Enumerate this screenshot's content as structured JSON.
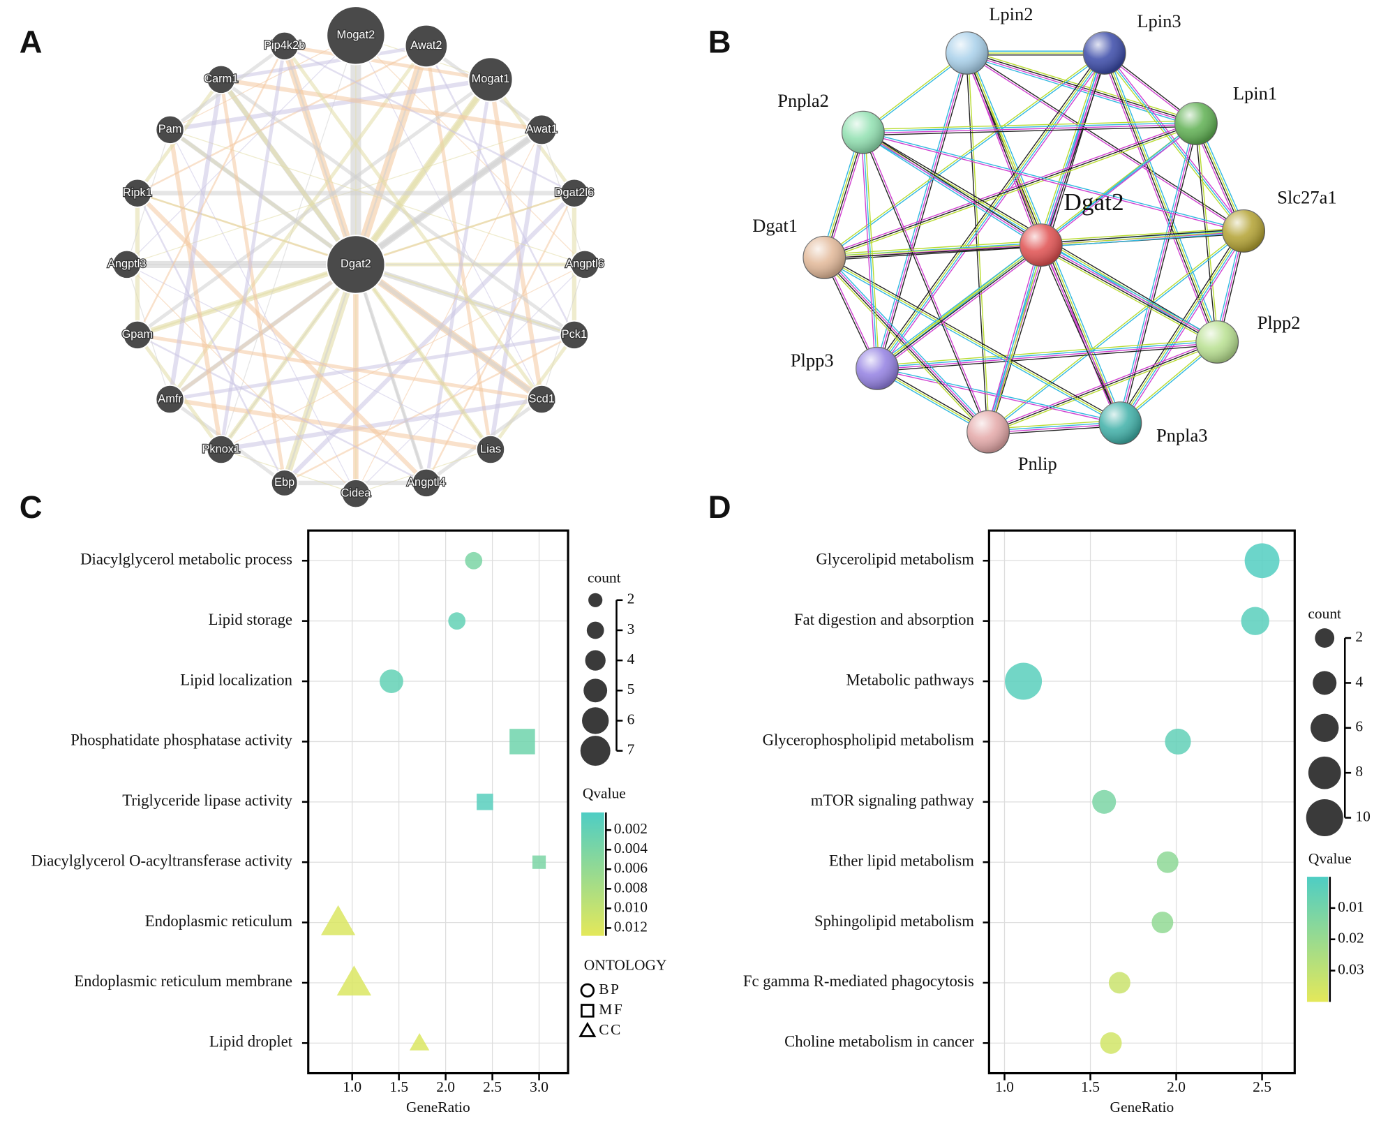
{
  "panel_labels": [
    "A",
    "B",
    "C",
    "D"
  ],
  "network_a": {
    "center": "Dgat2",
    "nodes": [
      "Mogat2",
      "Awat2",
      "Mogat1",
      "Awat1",
      "Dgat2l6",
      "Angptl6",
      "Pck1",
      "Scd1",
      "Lias",
      "Angptl4",
      "Cidea",
      "Ebp",
      "Pknox1",
      "Amfr",
      "Gpam",
      "Angptl3",
      "Ripk1",
      "Pam",
      "Carm1",
      "Pip4k2b"
    ]
  },
  "network_b": {
    "center": "Dgat2",
    "nodes": [
      "Lpin2",
      "Lpin3",
      "Lpin1",
      "Slc27a1",
      "Plpp2",
      "Pnpla3",
      "Pnlip",
      "Plpp3",
      "Dgat1",
      "Pnpla2"
    ]
  },
  "chart_data": [
    {
      "type": "scatter",
      "categories": [
        "Diacylglycerol metabolic process",
        "Lipid storage",
        "Lipid localization",
        "Phosphatidate phosphatase activity",
        "Triglyceride lipase activity",
        "Diacylglycerol O-acyltransferase activity",
        "Endoplasmic reticulum",
        "Endoplasmic reticulum membrane",
        "Lipid droplet"
      ],
      "values": [
        2.3,
        2.12,
        1.42,
        2.82,
        2.42,
        3.0,
        0.85,
        1.02,
        1.72
      ],
      "sizes": [
        3,
        3,
        5,
        6,
        3,
        2,
        7,
        7,
        3
      ],
      "qvalues": [
        0.004,
        0.002,
        0.002,
        0.003,
        0.001,
        0.004,
        0.012,
        0.012,
        0.012
      ],
      "ontology": [
        "BP",
        "BP",
        "BP",
        "MF",
        "MF",
        "MF",
        "CC",
        "CC",
        "CC"
      ],
      "x_label": "GeneRatio",
      "xlim": [
        0.53,
        3.31
      ],
      "xticks": [
        {
          "value": 1,
          "label": "1.0"
        },
        1.5,
        {
          "value": 2,
          "label": "2.0"
        },
        2.5,
        {
          "value": 3,
          "label": "3.0"
        }
      ],
      "grid": true,
      "size_title": "count",
      "size_ticks": [
        2,
        3,
        4,
        5,
        6,
        7
      ],
      "color_title": "Qvalue",
      "color_lim": [
        0.0002,
        0.0128
      ],
      "color_ticks": [
        0.002,
        0.004,
        0.006,
        0.008,
        {
          "value": 0.01,
          "label": "0.010"
        },
        0.012
      ],
      "color_low": "#4ecdc4",
      "color_high": "#e4e85a",
      "shape_title": "ONTOLOGY",
      "shape_legend": [
        "BP",
        "MF",
        "CC"
      ]
    },
    {
      "type": "scatter",
      "categories": [
        "Glycerolipid metabolism",
        "Fat digestion and absorption",
        "Metabolic pathways",
        "Glycerophospholipid metabolism",
        "mTOR signaling pathway",
        "Ether lipid metabolism",
        "Sphingolipid metabolism",
        "Fc gamma R-mediated phagocytosis",
        "Choline metabolism in cancer"
      ],
      "values": [
        2.5,
        2.46,
        1.11,
        2.01,
        1.58,
        1.95,
        1.92,
        1.67,
        1.62
      ],
      "sizes": [
        9,
        6,
        10,
        5,
        4,
        3,
        3,
        3,
        3
      ],
      "qvalues": [
        0.001,
        0.003,
        0.003,
        0.005,
        0.012,
        0.017,
        0.018,
        0.033,
        0.035
      ],
      "x_label": "GeneRatio",
      "xlim": [
        0.91,
        2.69
      ],
      "xticks": [
        {
          "value": 1,
          "label": "1.0"
        },
        1.5,
        {
          "value": 2,
          "label": "2.0"
        },
        2.5
      ],
      "grid": true,
      "size_title": "count",
      "size_ticks": [
        2,
        4,
        6,
        8,
        10
      ],
      "color_title": "Qvalue",
      "color_lim": [
        0,
        0.04
      ],
      "color_ticks": [
        0.01,
        0.02,
        0.03
      ],
      "color_low": "#4ecdc4",
      "color_high": "#e4e85a"
    }
  ]
}
